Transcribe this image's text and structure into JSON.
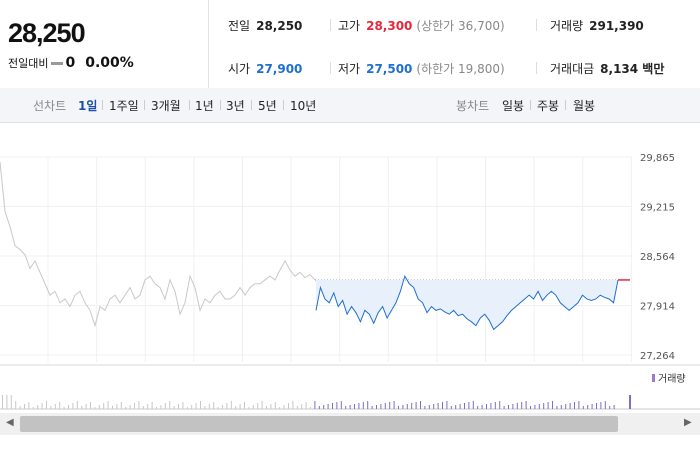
{
  "quote": {
    "price": "28,250",
    "change_label": "전일대비",
    "change_value": "0",
    "change_rate": "0.00%"
  },
  "stats": {
    "prev_label": "전일",
    "prev_value": "28,250",
    "high_label": "고가",
    "high_value": "28,300",
    "upper_limit": "(상한가 36,700)",
    "volume_label": "거래량",
    "volume_value": "291,390",
    "open_label": "시가",
    "open_value": "27,900",
    "low_label": "저가",
    "low_value": "27,500",
    "lower_limit": "(하한가 19,800)",
    "amount_label": "거래대금",
    "amount_value": "8,134 백만"
  },
  "toolbar": {
    "line_chart_label": "선차트",
    "periods": [
      "1일",
      "1주일",
      "3개월",
      "1년",
      "3년",
      "5년",
      "10년"
    ],
    "active_period": "1일",
    "candle_chart_label": "봉차트",
    "candle_periods": [
      "일봉",
      "주봉",
      "월봉"
    ]
  },
  "colors": {
    "up": "#e8263a",
    "down": "#1e6fd0",
    "prev_line": "#c8c8c8"
  },
  "chart_data": {
    "type": "line",
    "y_ticks": [
      "29,865",
      "29,215",
      "28,564",
      "27,914",
      "27,264"
    ],
    "ylim": [
      27264,
      29865
    ],
    "reference_price": 28250,
    "legend": "거래량",
    "previous_day_series": [
      29800,
      29150,
      28950,
      28700,
      28650,
      28580,
      28400,
      28500,
      28350,
      28200,
      28050,
      28100,
      27950,
      28000,
      27900,
      28050,
      28100,
      27950,
      27850,
      27650,
      27900,
      27850,
      28000,
      28050,
      27950,
      28050,
      28150,
      28000,
      28050,
      28250,
      28300,
      28200,
      28150,
      28000,
      28250,
      28100,
      27800,
      27950,
      28300,
      28150,
      27850,
      28000,
      27950,
      28050,
      28100,
      28000,
      28000,
      28050,
      28150,
      28050,
      28150,
      28200,
      28200,
      28250,
      28300,
      28250,
      28380,
      28500,
      28380,
      28300,
      28350,
      28280,
      28320,
      28250
    ],
    "today_series": [
      27850,
      28150,
      28000,
      27950,
      28080,
      27900,
      27980,
      27800,
      27900,
      27820,
      27700,
      27850,
      27800,
      27680,
      27820,
      27900,
      27750,
      27850,
      27950,
      28100,
      28300,
      28200,
      28150,
      28000,
      27950,
      27820,
      27900,
      27850,
      27870,
      27830,
      27800,
      27850,
      27780,
      27800,
      27740,
      27700,
      27650,
      27750,
      27800,
      27720,
      27600,
      27650,
      27700,
      27780,
      27850,
      27900,
      27950,
      28000,
      28050,
      28000,
      28100,
      27980,
      28050,
      28100,
      28050,
      27950,
      27900,
      27850,
      27900,
      27950,
      28050,
      28000,
      27980,
      28000,
      28050,
      28020,
      28000,
      27950,
      28250
    ]
  }
}
